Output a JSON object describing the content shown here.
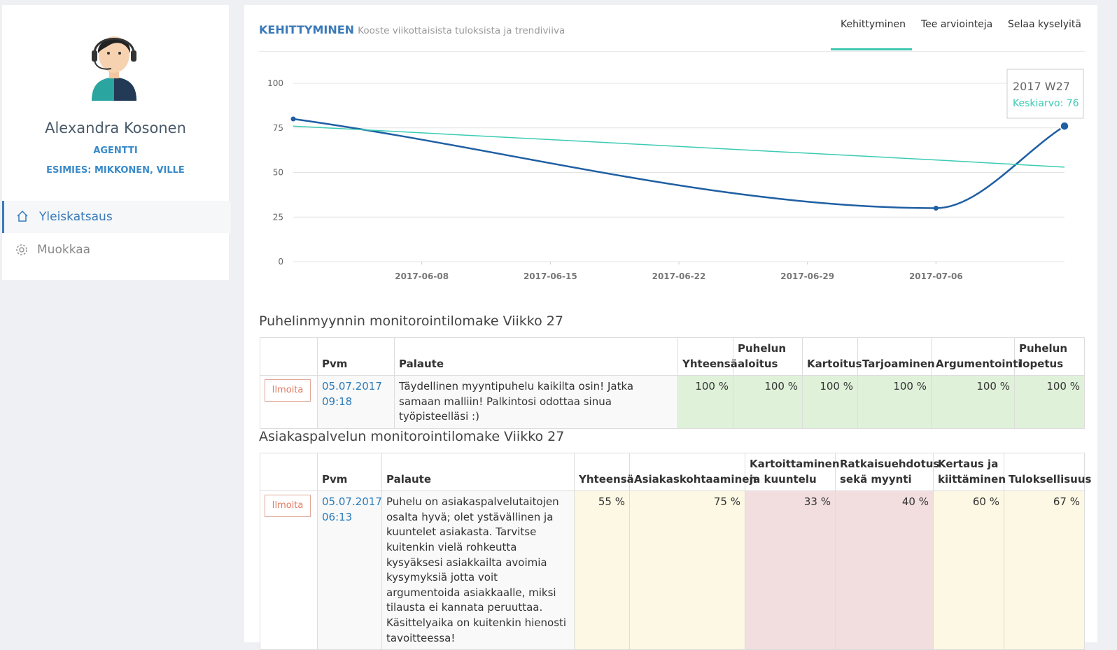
{
  "profile": {
    "name": "Alexandra Kosonen",
    "role": "AGENTTI",
    "supervisor": "ESIMIES: MIKKONEN, VILLE"
  },
  "nav": [
    "Yleiskatsaus",
    "Muokkaa"
  ],
  "header": {
    "title": "KEHITTYMINEN",
    "subtitle": "Kooste viikottaisista tuloksista ja trendiviiva"
  },
  "tabs": [
    "Kehittyminen",
    "Tee arviointeja",
    "Selaa kyselyitä"
  ],
  "chart_data": {
    "type": "line",
    "x": [
      "2017-06-01",
      "2017-07-06",
      "2017-07-13"
    ],
    "series": [
      {
        "color": "#1f5fa3",
        "values": [
          80,
          30,
          76
        ]
      },
      {
        "color": "#3ccbb4",
        "values": [
          76,
          57,
          53
        ]
      }
    ],
    "xlim": [
      "2017-06-01",
      "2017-07-13"
    ],
    "xticks": [
      "2017-06-08",
      "2017-06-15",
      "2017-06-22",
      "2017-06-29",
      "2017-07-06"
    ],
    "ylim": [
      0,
      100
    ],
    "yticks": [
      0,
      25,
      50,
      75,
      100
    ],
    "grid": true,
    "tooltip": {
      "title": "2017 W27",
      "text": "Keskiarvo: 76"
    }
  },
  "forms": [
    {
      "title": "Puhelinmyynnin monitorointilomake Viikko 27",
      "columns": [
        "Pvm",
        "Palaute",
        "Yhteensä",
        "Puhelun aloitus",
        "Kartoitus",
        "Tarjoaminen",
        "Argumentointi",
        "Puhelun lopetus"
      ],
      "rows": [
        {
          "action": "Ilmoita",
          "date": "05.07.2017 09:18",
          "feedback": "Täydellinen myyntipuhelu kaikilta osin! Jatka samaan malliin! Palkintosi odottaa sinua työpisteelläsi :)",
          "scores": [
            "100 %",
            "100 %",
            "100 %",
            "100 %",
            "100 %",
            "100 %"
          ],
          "score_colors": [
            "#e0f1da",
            "#e0f1da",
            "#e0f1da",
            "#e0f1da",
            "#e0f1da",
            "#e0f1da"
          ]
        }
      ]
    },
    {
      "title": "Asiakaspalvelun monitorointilomake Viikko 27",
      "columns": [
        "Pvm",
        "Palaute",
        "Yhteensä",
        "Asiakaskohtaaminen",
        "Kartoittaminen ja kuuntelu",
        "Ratkaisuehdotus sekä myynti",
        "Kertaus ja kiittäminen",
        "Tuloksellisuus"
      ],
      "rows": [
        {
          "action": "Ilmoita",
          "date": "05.07.2017 06:13",
          "feedback": "Puhelu on asiakaspalvelutaitojen osalta hyvä; olet ystävällinen ja kuuntelet asiakasta. Tarvitse kuitenkin vielä rohkeutta kysyäksesi asiakkailta avoimia kysymyksiä jotta voit argumentoida asiakkaalle, miksi tilausta ei kannata peruuttaa. Käsittelyaika on kuitenkin hienosti tavoitteessa!",
          "scores": [
            "55 %",
            "75 %",
            "33 %",
            "40 %",
            "60 %",
            "67 %"
          ],
          "score_colors": [
            "#fcf8e3",
            "#fcf8e3",
            "#f2dede",
            "#f2dede",
            "#fcf8e3",
            "#fcf8e3"
          ]
        }
      ]
    }
  ]
}
